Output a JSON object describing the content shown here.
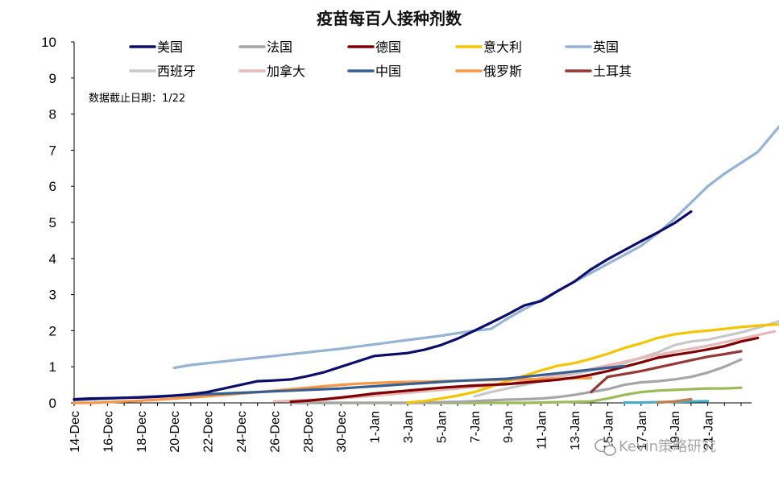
{
  "chart_data": {
    "type": "line",
    "title": "疫苗每百人接种剂数",
    "note": "数据截止日期：1/22",
    "watermark": "Kevin策略研究",
    "ylim": [
      0,
      10
    ],
    "yticks": [
      "0",
      "1",
      "2",
      "3",
      "4",
      "5",
      "6",
      "7",
      "8",
      "9",
      "10"
    ],
    "xticks": [
      "14-Dec",
      "16-Dec",
      "18-Dec",
      "20-Dec",
      "22-Dec",
      "24-Dec",
      "26-Dec",
      "28-Dec",
      "30-Dec",
      "1-Jan",
      "3-Jan",
      "5-Jan",
      "7-Jan",
      "9-Jan",
      "11-Jan",
      "13-Jan",
      "15-Jan",
      "17-Jan",
      "19-Jan",
      "21-Jan"
    ],
    "legend_placement": "top",
    "series": [
      {
        "name": "美国",
        "color": "#0d0d6b",
        "start": 0,
        "values": [
          0.1,
          0.12,
          0.13,
          0.14,
          0.15,
          0.17,
          0.2,
          0.24,
          0.3,
          0.4,
          0.5,
          0.6,
          0.62,
          0.65,
          0.74,
          0.85,
          1.0,
          1.15,
          1.3,
          1.34,
          1.38,
          1.47,
          1.6,
          1.78,
          2.0,
          2.22,
          2.45,
          2.7,
          2.82,
          3.1,
          3.36,
          3.7,
          3.98,
          4.23,
          4.48,
          4.72,
          4.98,
          5.3
        ]
      },
      {
        "name": "法国",
        "color": "#a6a6a6",
        "start": 13,
        "values": [
          0,
          0,
          0,
          0,
          0,
          0,
          0,
          0,
          0,
          0.02,
          0.03,
          0.05,
          0.07,
          0.09,
          0.1,
          0.12,
          0.16,
          0.22,
          0.3,
          0.38,
          0.5,
          0.57,
          0.6,
          0.65,
          0.72,
          0.84,
          1.0,
          1.2
        ]
      },
      {
        "name": "德国",
        "color": "#7f0000",
        "start": 13,
        "values": [
          0.03,
          0.06,
          0.1,
          0.15,
          0.2,
          0.26,
          0.3,
          0.34,
          0.38,
          0.42,
          0.45,
          0.48,
          0.5,
          0.52,
          0.56,
          0.6,
          0.64,
          0.7,
          0.78,
          0.88,
          1.0,
          1.12,
          1.25,
          1.33,
          1.4,
          1.48,
          1.57,
          1.7,
          1.8
        ]
      },
      {
        "name": "意大利",
        "color": "#f5c400",
        "start": 20,
        "values": [
          0.01,
          0.05,
          0.12,
          0.2,
          0.3,
          0.45,
          0.6,
          0.75,
          0.9,
          1.03,
          1.1,
          1.22,
          1.36,
          1.52,
          1.65,
          1.8,
          1.9,
          1.96,
          2.0,
          2.05,
          2.1,
          2.14,
          2.17,
          2.17
        ]
      },
      {
        "name": "英国",
        "color": "#95b3d7",
        "start": 6,
        "values": [
          0.97,
          1.05,
          1.1,
          1.15,
          1.2,
          1.25,
          1.3,
          1.35,
          1.4,
          1.45,
          1.5,
          1.56,
          1.62,
          1.68,
          1.74,
          1.8,
          1.86,
          1.93,
          2.0,
          2.05,
          2.34,
          2.6,
          2.85,
          3.1,
          3.35,
          3.6,
          3.85,
          4.1,
          4.35,
          4.7,
          5.1,
          5.55,
          6.0,
          6.35,
          6.65,
          6.95,
          7.5,
          8.05,
          8.6
        ]
      },
      {
        "name": "西班牙",
        "color": "#c8c8c8",
        "start": 24,
        "values": [
          0.18,
          0.3,
          0.4,
          0.5,
          0.6,
          0.7,
          0.8,
          0.9,
          1.0,
          1.1,
          1.25,
          1.4,
          1.6,
          1.7,
          1.75,
          1.85,
          1.95,
          2.08,
          2.22,
          2.38,
          2.5
        ]
      },
      {
        "name": "加拿大",
        "color": "#e6b8b7",
        "start": 12,
        "values": [
          0.04,
          0.06,
          0.08,
          0.1,
          0.13,
          0.16,
          0.2,
          0.24,
          0.28,
          0.32,
          0.36,
          0.4,
          0.44,
          0.48,
          0.52,
          0.6,
          0.68,
          0.76,
          0.85,
          0.94,
          1.04,
          1.14,
          1.24,
          1.33,
          1.42,
          1.5,
          1.58,
          1.68,
          1.78,
          1.88,
          1.98
        ]
      },
      {
        "name": "中国",
        "color": "#376092",
        "start": 0,
        "values": [
          0.08,
          0.1,
          0.12,
          0.14,
          0.16,
          0.18,
          0.2,
          0.22,
          0.24,
          0.26,
          0.28,
          0.3,
          0.32,
          0.34,
          0.36,
          0.38,
          0.4,
          0.43,
          0.46,
          0.49,
          0.52,
          0.55,
          0.58,
          0.61,
          0.63,
          0.65,
          0.67,
          0.72,
          0.77,
          0.82,
          0.87,
          0.92,
          0.97,
          1.02
        ]
      },
      {
        "name": "俄罗斯",
        "color": "#f79646",
        "start": 0,
        "values": [
          0.0,
          0.0,
          0.02,
          0.04,
          0.06,
          0.09,
          0.12,
          0.15,
          0.18,
          0.22,
          0.26,
          0.3,
          0.34,
          0.38,
          0.42,
          0.46,
          0.5,
          0.53,
          0.55,
          0.57,
          0.58,
          0.59,
          0.6,
          0.61,
          0.62,
          0.63,
          0.64,
          0.65,
          0.66,
          0.67,
          0.68,
          0.69
        ]
      },
      {
        "name": "土耳其",
        "color": "#953735",
        "start": 31,
        "values": [
          0.3,
          0.72,
          0.8,
          0.88,
          0.98,
          1.08,
          1.18,
          1.28,
          1.35,
          1.43
        ]
      }
    ],
    "extra_series": [
      {
        "color": "#9bbb59",
        "start": 13,
        "values": [
          0,
          0,
          0,
          0,
          0,
          0,
          0,
          0,
          0,
          0,
          0,
          0,
          0,
          0,
          0,
          0.01,
          0.02,
          0.03,
          0.04,
          0.12,
          0.22,
          0.3,
          0.34,
          0.36,
          0.38,
          0.4,
          0.4,
          0.42
        ]
      },
      {
        "color": "#4bacc6",
        "start": 33,
        "values": [
          0.01,
          0.01,
          0.02,
          0.03,
          0.04,
          0.05
        ]
      },
      {
        "color": "#c0804d",
        "start": 35,
        "values": [
          0.01,
          0.04,
          0.1
        ]
      }
    ]
  }
}
